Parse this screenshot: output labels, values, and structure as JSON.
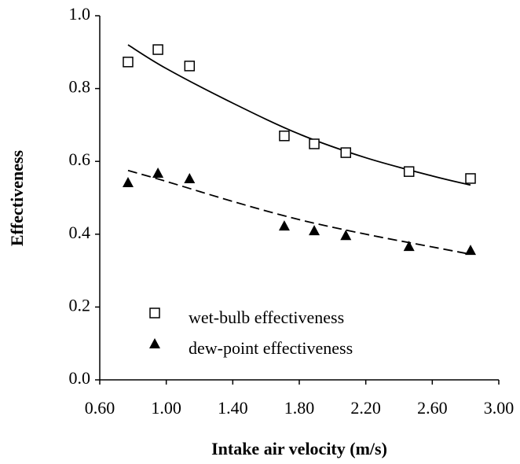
{
  "chart_data": {
    "type": "scatter",
    "x_label": "Intake air velocity (m/s)",
    "y_label": "Effectiveness",
    "xlim": [
      0.6,
      3.0
    ],
    "ylim": [
      0,
      1.0
    ],
    "xticks": [
      {
        "value": 0.6,
        "label": "0.60"
      },
      {
        "value": 1.0,
        "label": "1.00"
      },
      {
        "value": 1.4,
        "label": "1.40"
      },
      {
        "value": 1.8,
        "label": "1.80"
      },
      {
        "value": 2.2,
        "label": "2.20"
      },
      {
        "value": 2.6,
        "label": "2.60"
      },
      {
        "value": 3.0,
        "label": "3.00"
      }
    ],
    "yticks": [
      {
        "value": 0,
        "label": "0.0"
      },
      0.2,
      0.4,
      0.6,
      0.8,
      {
        "value": 1.0,
        "label": "1.0"
      }
    ],
    "legend": "lower left",
    "series": [
      {
        "name": "wet-bulb effectiveness",
        "marker": "square",
        "color": "#000000",
        "x": [
          0.77,
          0.95,
          1.14,
          1.71,
          1.89,
          2.08,
          2.46,
          2.83
        ],
        "values": [
          0.873,
          0.907,
          0.862,
          0.67,
          0.648,
          0.624,
          0.572,
          0.553
        ]
      },
      {
        "name": "dew-point effectiveness",
        "marker": "triangle",
        "color": "#000000",
        "x": [
          0.77,
          0.95,
          1.14,
          1.71,
          1.89,
          2.08,
          2.46,
          2.83
        ],
        "values": [
          0.542,
          0.568,
          0.553,
          0.423,
          0.41,
          0.397,
          0.367,
          0.356
        ]
      }
    ],
    "trendlines": [
      {
        "style": "solid",
        "color": "#000000",
        "x": [
          0.77,
          1.0,
          1.4,
          1.8,
          2.2,
          2.6,
          2.83
        ],
        "values": [
          0.92,
          0.855,
          0.76,
          0.675,
          0.61,
          0.56,
          0.535
        ]
      },
      {
        "style": "dashed",
        "color": "#000000",
        "x": [
          0.77,
          1.0,
          1.4,
          1.8,
          2.2,
          2.6,
          2.83
        ],
        "values": [
          0.575,
          0.545,
          0.49,
          0.44,
          0.4,
          0.365,
          0.345
        ]
      }
    ]
  }
}
